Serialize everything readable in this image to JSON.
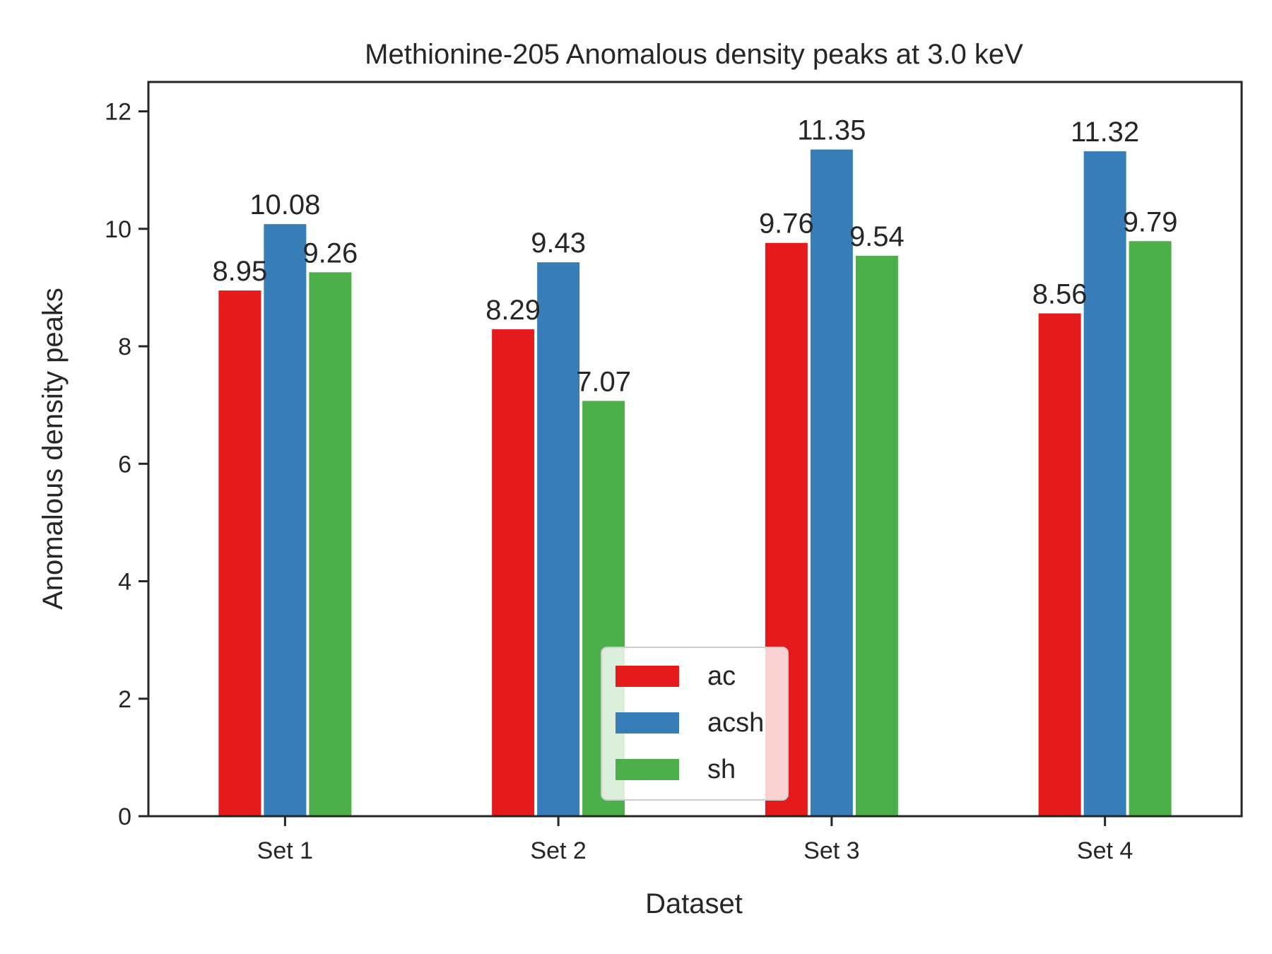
{
  "chart_data": {
    "type": "bar",
    "title": "Methionine-205 Anomalous density peaks at 3.0 keV",
    "xlabel": "Dataset",
    "ylabel": "Anomalous density peaks",
    "categories": [
      "Set 1",
      "Set 2",
      "Set 3",
      "Set 4"
    ],
    "series": [
      {
        "name": "ac",
        "color": "#e41a1c",
        "values": [
          8.95,
          8.29,
          9.76,
          8.56
        ]
      },
      {
        "name": "acsh",
        "color": "#377eb8",
        "values": [
          10.08,
          9.43,
          11.35,
          11.32
        ]
      },
      {
        "name": "sh",
        "color": "#4daf4a",
        "values": [
          9.26,
          7.07,
          9.54,
          9.79
        ]
      }
    ],
    "ylim": [
      0,
      12.5
    ],
    "yticks": [
      0,
      2,
      4,
      6,
      8,
      10,
      12
    ],
    "grid": false,
    "legend": "lower center"
  }
}
